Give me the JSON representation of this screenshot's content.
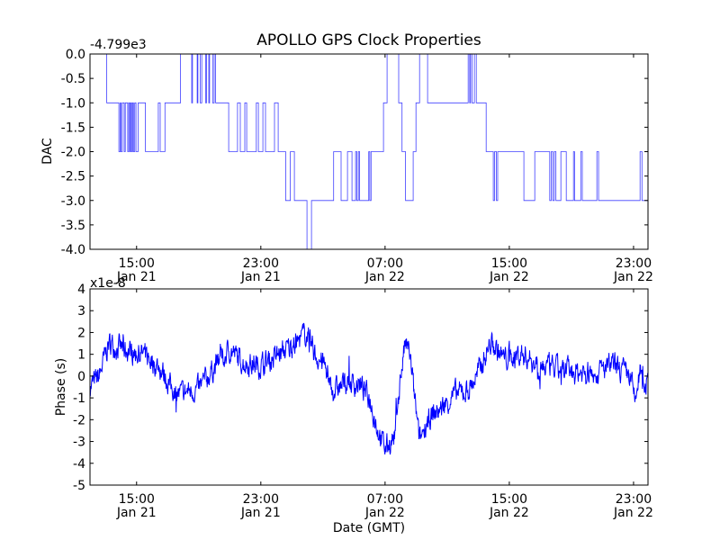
{
  "chart_data": [
    {
      "type": "line",
      "title": "APOLLO GPS Clock Properties",
      "ylabel": "DAC",
      "xlabel": "",
      "offset_label": "-4.799e3",
      "xlim_hours_from_jan21_0000": [
        12.0,
        47.93
      ],
      "ylim": [
        -4.0,
        0.0
      ],
      "yticks": [
        0.0,
        -0.5,
        -1.0,
        -1.5,
        -2.0,
        -2.5,
        -3.0,
        -3.5,
        -4.0
      ],
      "ytick_labels": [
        "0.0",
        "-0.5",
        "-1.0",
        "-1.5",
        "-2.0",
        "-2.5",
        "-3.0",
        "-3.5",
        "-4.0"
      ],
      "xticks": [
        15,
        23,
        31,
        39,
        47
      ],
      "xtick_labels": [
        [
          "15:00",
          "Jan 21"
        ],
        [
          "23:00",
          "Jan 21"
        ],
        [
          "07:00",
          "Jan 22"
        ],
        [
          "15:00",
          "Jan 22"
        ],
        [
          "23:00",
          "Jan 22"
        ]
      ],
      "line_color": "#0000ff",
      "steps": [
        [
          12.0,
          0
        ],
        [
          13.08,
          -1
        ],
        [
          13.86,
          -2
        ],
        [
          13.95,
          -1
        ],
        [
          14.0,
          -2
        ],
        [
          14.08,
          -1
        ],
        [
          14.2,
          -2
        ],
        [
          14.27,
          -1
        ],
        [
          14.43,
          -2
        ],
        [
          14.5,
          -1
        ],
        [
          14.56,
          -2
        ],
        [
          14.62,
          -1
        ],
        [
          14.68,
          -2
        ],
        [
          14.74,
          -1
        ],
        [
          14.8,
          -2
        ],
        [
          14.88,
          -1
        ],
        [
          14.96,
          -2
        ],
        [
          15.1,
          -1
        ],
        [
          15.57,
          -2
        ],
        [
          16.4,
          -1
        ],
        [
          16.52,
          -2
        ],
        [
          16.83,
          -1
        ],
        [
          17.83,
          0
        ],
        [
          18.55,
          -1
        ],
        [
          18.6,
          0
        ],
        [
          18.9,
          -1
        ],
        [
          18.95,
          0
        ],
        [
          19.1,
          -1
        ],
        [
          19.2,
          0
        ],
        [
          19.45,
          -1
        ],
        [
          19.5,
          0
        ],
        [
          19.65,
          -1
        ],
        [
          19.7,
          0
        ],
        [
          19.9,
          -1
        ],
        [
          20.0,
          0
        ],
        [
          20.09,
          -1
        ],
        [
          20.93,
          -2
        ],
        [
          21.5,
          -1
        ],
        [
          21.68,
          -2
        ],
        [
          21.97,
          -1
        ],
        [
          22.09,
          -2
        ],
        [
          22.71,
          -1
        ],
        [
          22.84,
          -2
        ],
        [
          23.13,
          -1
        ],
        [
          23.3,
          -2
        ],
        [
          23.88,
          -1
        ],
        [
          24.12,
          -2
        ],
        [
          24.6,
          -3
        ],
        [
          24.9,
          -2
        ],
        [
          25.16,
          -3
        ],
        [
          25.97,
          -4
        ],
        [
          26.26,
          -3
        ],
        [
          27.69,
          -2
        ],
        [
          28.17,
          -3
        ],
        [
          28.58,
          -2
        ],
        [
          28.87,
          -3
        ],
        [
          29.1,
          -2
        ],
        [
          29.18,
          -3
        ],
        [
          29.28,
          -2
        ],
        [
          29.36,
          -3
        ],
        [
          29.6,
          -3
        ],
        [
          29.95,
          -2
        ],
        [
          30.02,
          -3
        ],
        [
          30.1,
          -2
        ],
        [
          30.35,
          -2
        ],
        [
          30.9,
          -1
        ],
        [
          31.13,
          0
        ],
        [
          31.88,
          -1
        ],
        [
          32.09,
          -2
        ],
        [
          32.32,
          -3
        ],
        [
          32.81,
          -2
        ],
        [
          32.99,
          -1
        ],
        [
          33.22,
          0
        ],
        [
          33.74,
          -1
        ],
        [
          36.35,
          0
        ],
        [
          36.45,
          -1
        ],
        [
          36.5,
          0
        ],
        [
          36.6,
          -1
        ],
        [
          36.75,
          0
        ],
        [
          36.87,
          -1
        ],
        [
          37.51,
          -2
        ],
        [
          37.97,
          -3
        ],
        [
          38.05,
          -2
        ],
        [
          38.17,
          -3
        ],
        [
          38.25,
          -2
        ],
        [
          39.94,
          -3
        ],
        [
          40.64,
          -2
        ],
        [
          41.6,
          -3
        ],
        [
          41.7,
          -2
        ],
        [
          41.8,
          -3
        ],
        [
          41.9,
          -2
        ],
        [
          42.0,
          -3
        ],
        [
          42.32,
          -2
        ],
        [
          42.67,
          -3
        ],
        [
          43.13,
          -2
        ],
        [
          43.2,
          -3
        ],
        [
          43.6,
          -2
        ],
        [
          43.7,
          -3
        ],
        [
          44.64,
          -2
        ],
        [
          44.75,
          -3
        ],
        [
          45.16,
          -3
        ],
        [
          47.42,
          -2
        ],
        [
          47.54,
          -3
        ],
        [
          47.93,
          -3
        ]
      ]
    },
    {
      "type": "line",
      "ylabel": "Phase (s)",
      "xlabel": "Date (GMT)",
      "offset_label": "x1e-8",
      "xlim_hours_from_jan21_0000": [
        12.0,
        47.93
      ],
      "ylim": [
        -5,
        4
      ],
      "yticks": [
        4,
        3,
        2,
        1,
        0,
        -1,
        -2,
        -3,
        -4,
        -5
      ],
      "ytick_labels": [
        "4",
        "3",
        "2",
        "1",
        "0",
        "-1",
        "-2",
        "-3",
        "-4",
        "-5"
      ],
      "xticks": [
        15,
        23,
        31,
        39,
        47
      ],
      "xtick_labels": [
        [
          "15:00",
          "Jan 21"
        ],
        [
          "23:00",
          "Jan 21"
        ],
        [
          "07:00",
          "Jan 22"
        ],
        [
          "15:00",
          "Jan 22"
        ],
        [
          "23:00",
          "Jan 22"
        ]
      ],
      "line_color": "#0000ff",
      "noise_amplitude": 0.45,
      "trend_points": [
        [
          12.0,
          -0.5
        ],
        [
          12.6,
          0
        ],
        [
          13.2,
          1.5
        ],
        [
          14.3,
          1.2
        ],
        [
          15.5,
          1.0
        ],
        [
          16.6,
          0.3
        ],
        [
          17.2,
          -0.5
        ],
        [
          17.8,
          -0.8
        ],
        [
          19.0,
          -0.6
        ],
        [
          20.1,
          0.5
        ],
        [
          21.0,
          1.2
        ],
        [
          21.9,
          0.6
        ],
        [
          23.0,
          0.5
        ],
        [
          24.2,
          1.0
        ],
        [
          25.3,
          1.5
        ],
        [
          25.9,
          2.0
        ],
        [
          26.5,
          1.0
        ],
        [
          27.1,
          0.5
        ],
        [
          27.65,
          -0.7
        ],
        [
          28.5,
          -0.3
        ],
        [
          29.4,
          -0.4
        ],
        [
          30.0,
          -1.0
        ],
        [
          30.55,
          -2.5
        ],
        [
          31.0,
          -3.3
        ],
        [
          31.6,
          -2.8
        ],
        [
          32.0,
          0
        ],
        [
          32.3,
          1.5
        ],
        [
          32.6,
          1.0
        ],
        [
          32.9,
          -1.0
        ],
        [
          33.2,
          -3.0
        ],
        [
          33.7,
          -2.0
        ],
        [
          34.6,
          -1.5
        ],
        [
          35.5,
          -0.8
        ],
        [
          36.3,
          -0.7
        ],
        [
          36.9,
          0
        ],
        [
          37.8,
          1.5
        ],
        [
          38.7,
          0.8
        ],
        [
          39.8,
          1.0
        ],
        [
          41.0,
          0.5
        ],
        [
          42.1,
          0.3
        ],
        [
          43.3,
          0.2
        ],
        [
          44.5,
          0.1
        ],
        [
          45.6,
          0.5
        ],
        [
          46.8,
          0
        ],
        [
          47.1,
          -1.2
        ],
        [
          47.4,
          0.2
        ],
        [
          47.93,
          -0.5
        ]
      ]
    }
  ]
}
